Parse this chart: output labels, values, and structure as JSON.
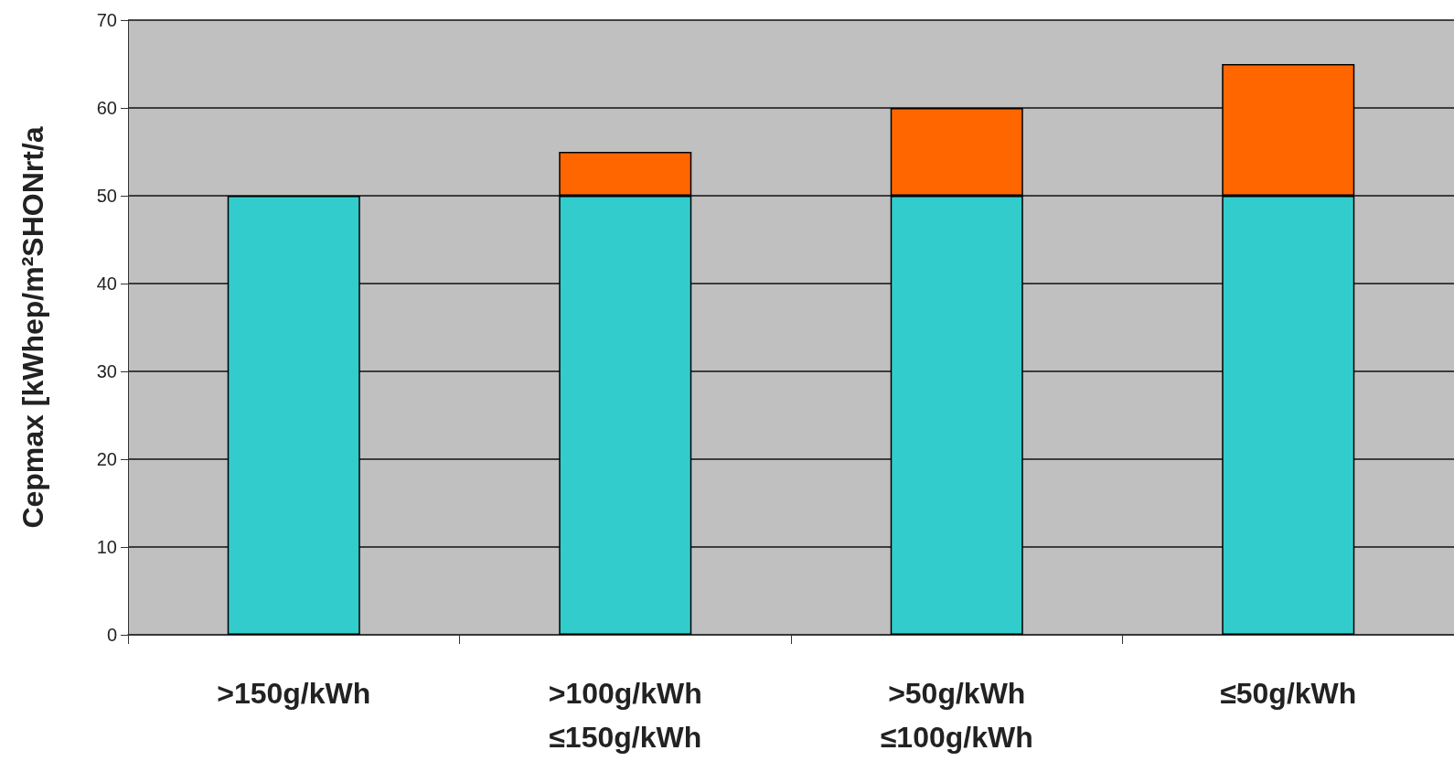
{
  "chart_data": {
    "type": "bar",
    "ylabel": "Cepmax [kWhep/m²SHONrt/a",
    "categories": [
      ">150g/kWh",
      ">100g/kWh\n≤150g/kWh",
      ">50g/kWh\n≤100g/kWh",
      "≤50g/kWh"
    ],
    "series": [
      {
        "color": "#33cccc",
        "values": [
          50,
          50,
          50,
          50
        ]
      },
      {
        "color": "#ff6600",
        "values": [
          null,
          5,
          10,
          15
        ]
      }
    ],
    "stacked": true,
    "ylim": [
      0,
      70
    ],
    "yticks": [
      0,
      10,
      20,
      30,
      40,
      50,
      60,
      70
    ],
    "grid": "y"
  }
}
